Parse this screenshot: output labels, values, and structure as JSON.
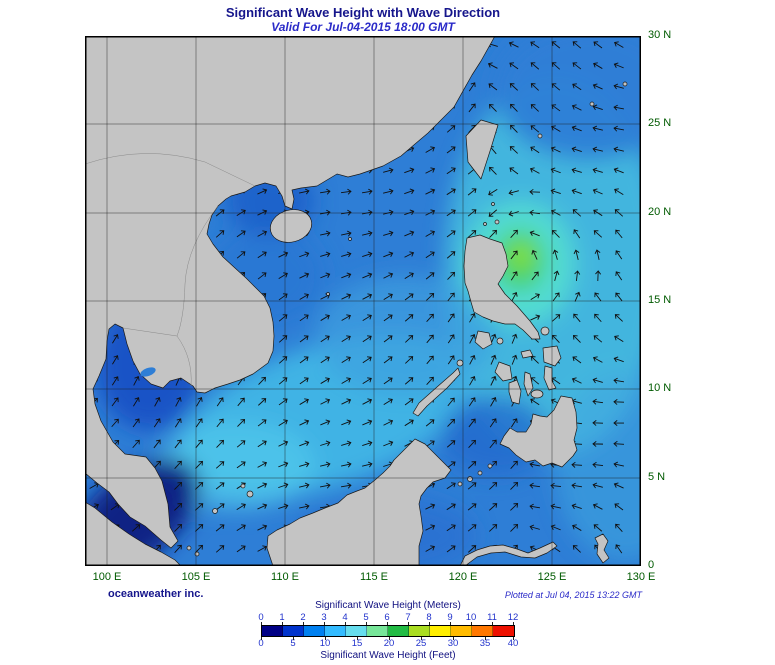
{
  "title": "Significant Wave Height with Wave Direction",
  "subtitle": "Valid For Jul-04-2015 18:00 GMT",
  "credit": "oceanweather inc.",
  "plotted_at": "Plotted at Jul 04, 2015 13:22 GMT",
  "map": {
    "lon_labels": [
      "100 E",
      "105 E",
      "110 E",
      "115 E",
      "120 E",
      "125 E",
      "130 E"
    ],
    "lat_labels": [
      "30 N",
      "25 N",
      "20 N",
      "15 N",
      "10 N",
      "5 N",
      "0"
    ],
    "lon_range_deg_e": [
      98.75,
      130
    ],
    "lat_range_deg_n": [
      0,
      30
    ],
    "grid_interval_deg": 5
  },
  "legend": {
    "meters_title": "Significant Wave Height (Meters)",
    "feet_title": "Significant Wave Height (Feet)",
    "meters_ticks": [
      "0",
      "1",
      "2",
      "3",
      "4",
      "5",
      "6",
      "7",
      "8",
      "9",
      "10",
      "11",
      "12"
    ],
    "feet_ticks": [
      "0",
      "5",
      "10",
      "15",
      "20",
      "25",
      "30",
      "35",
      "40"
    ],
    "colorbar_colors": [
      "#000085",
      "#0033cc",
      "#0080f0",
      "#33bbff",
      "#66ddee",
      "#77e699",
      "#22bb44",
      "#aadd22",
      "#ffee00",
      "#ffbb00",
      "#ff7700",
      "#ee1100"
    ]
  },
  "colors": {
    "title_text": "#16168c",
    "subtitle_text": "#2a2ac8",
    "axis_label_text": "#005a00",
    "legend_number_text": "#2233cc",
    "land": "#c4c4c4",
    "ocean_base": "#2e7ed6",
    "storm_peak_green": "#44d060"
  }
}
